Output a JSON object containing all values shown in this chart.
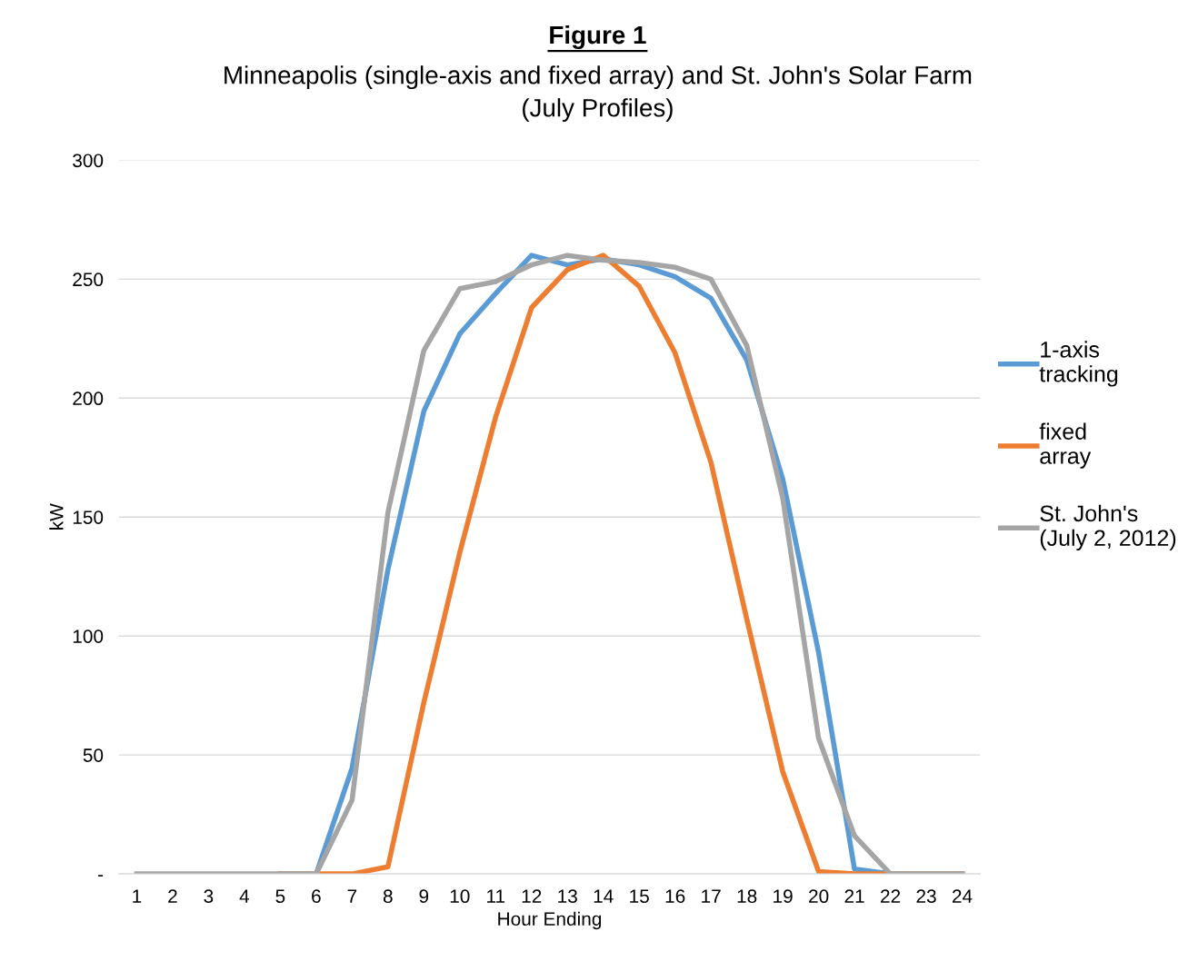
{
  "chart_data": {
    "type": "line",
    "title": "Figure 1",
    "subtitle": "Minneapolis (single-axis and fixed array) and St. John's Solar Farm\n(July Profiles)",
    "xlabel": "Hour Ending",
    "ylabel": "kW",
    "categories": [
      "1",
      "2",
      "3",
      "4",
      "5",
      "6",
      "7",
      "8",
      "9",
      "10",
      "11",
      "12",
      "13",
      "14",
      "15",
      "16",
      "17",
      "18",
      "19",
      "20",
      "21",
      "22",
      "23",
      "24"
    ],
    "series": [
      {
        "name": "1-axis\ntracking",
        "color": "#5b9bd5",
        "values": [
          null,
          null,
          null,
          null,
          0,
          0,
          44.5,
          128,
          194.5,
          227,
          244,
          260,
          256,
          258.5,
          256,
          251,
          242,
          216,
          166,
          93,
          2,
          0,
          0,
          0
        ]
      },
      {
        "name": "fixed\narray",
        "color": "#ed7d31",
        "values": [
          null,
          null,
          null,
          null,
          0,
          0,
          0,
          3,
          72,
          135,
          192,
          238,
          254,
          260,
          247,
          219,
          173,
          107,
          43,
          1,
          0,
          0,
          0,
          0
        ]
      },
      {
        "name": "St. John's\n(July 2, 2012)",
        "color": "#a5a5a5",
        "values": [
          0,
          0,
          0,
          0,
          0,
          0,
          31,
          152,
          220,
          246,
          249,
          256,
          260,
          258,
          257,
          255,
          250,
          222,
          158,
          57,
          16,
          0,
          0,
          0
        ]
      }
    ],
    "ylim": [
      0,
      300
    ],
    "yticks": [
      {
        "value": 0,
        "label": "-"
      },
      50,
      100,
      150,
      200,
      250,
      300
    ],
    "grid": "y",
    "legend": "right",
    "marker": "none",
    "line_style": "solid"
  }
}
